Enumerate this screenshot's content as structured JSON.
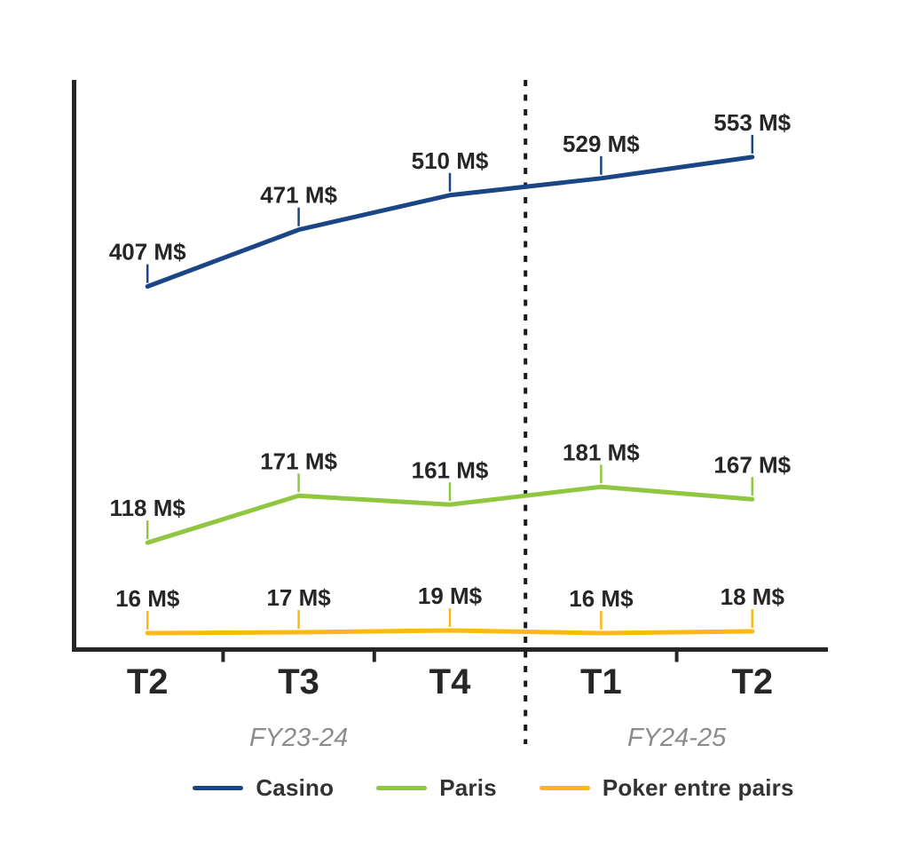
{
  "chart_data": {
    "type": "line",
    "categories": [
      "T2",
      "T3",
      "T4",
      "T1",
      "T2"
    ],
    "series": [
      {
        "name": "Casino",
        "color": "#1b4685",
        "values": [
          407,
          471,
          510,
          529,
          553
        ]
      },
      {
        "name": "Paris",
        "color": "#8fc740",
        "values": [
          118,
          171,
          161,
          181,
          167
        ]
      },
      {
        "name": "Poker entre pairs",
        "color": "#fdb913",
        "values": [
          16,
          17,
          19,
          16,
          18
        ]
      }
    ],
    "value_label_suffix": " M$",
    "value_labels": [
      [
        "407 M$",
        "471 M$",
        "510 M$",
        "529 M$",
        "553 M$"
      ],
      [
        "118 M$",
        "171 M$",
        "161 M$",
        "181 M$",
        "167 M$"
      ],
      [
        "16 M$",
        "17 M$",
        "19 M$",
        "16 M$",
        "18 M$"
      ]
    ],
    "fiscal_year_groups": [
      {
        "label": "FY23-24",
        "from_category": 0,
        "to_category": 3
      },
      {
        "label": "FY24-25",
        "from_category": 3,
        "to_category": 5
      }
    ],
    "divider_at_category_boundary": 3,
    "ylim": [
      0,
      640
    ],
    "grid": false,
    "legend_position": "bottom",
    "axis_color": "#262626",
    "label_color": "#262626",
    "divider_color": "#1a1a1a",
    "fiscal_label_color": "#8c8c8c",
    "legend_text_color": "#333333"
  }
}
